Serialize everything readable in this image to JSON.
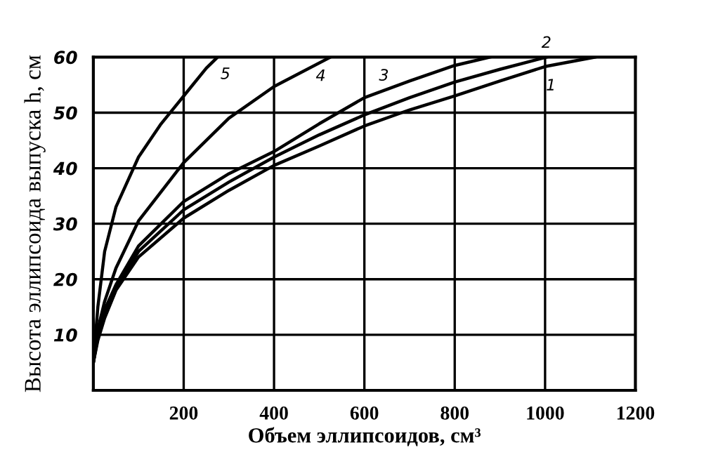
{
  "chart_data": {
    "type": "line",
    "xlabel": "Объем эллипсоидов, см³",
    "ylabel": "Высота эллипсоида выпуска h, см",
    "xlim": [
      0,
      1200
    ],
    "ylim": [
      0,
      60
    ],
    "xticks": [
      {
        "value": 0,
        "label": null
      },
      200,
      400,
      600,
      800,
      1000,
      1200
    ],
    "yticks": [
      {
        "value": 0,
        "label": null
      },
      10,
      20,
      30,
      40,
      50,
      60
    ],
    "grid": true,
    "legend": false,
    "marker": "none",
    "line_style": "solid",
    "series": [
      {
        "name": "1",
        "color": "#000000",
        "x": [
          0,
          10,
          25,
          50,
          100,
          200,
          300,
          400,
          500,
          600,
          700,
          800,
          900,
          1000,
          1110
        ],
        "values": [
          5,
          9,
          13,
          18,
          24,
          31,
          36,
          40.5,
          44,
          47.6,
          50.5,
          53,
          55.7,
          58.3,
          60
        ]
      },
      {
        "name": "2",
        "color": "#000000",
        "x": [
          0,
          10,
          25,
          50,
          100,
          200,
          300,
          400,
          500,
          600,
          700,
          800,
          900,
          1003
        ],
        "values": [
          5,
          9.5,
          14,
          18.5,
          25,
          32.5,
          37.5,
          42,
          46,
          49.6,
          52.7,
          55.5,
          57.8,
          60
        ]
      },
      {
        "name": "3",
        "color": "#000000",
        "x": [
          0,
          10,
          25,
          50,
          100,
          200,
          300,
          400,
          500,
          600,
          700,
          800,
          878
        ],
        "values": [
          5,
          10,
          14.5,
          19,
          26,
          34,
          39,
          43,
          48,
          52.7,
          55.7,
          58.5,
          60
        ]
      },
      {
        "name": "4",
        "color": "#000000",
        "x": [
          0,
          10,
          25,
          50,
          100,
          200,
          300,
          400,
          525
        ],
        "values": [
          5,
          11,
          16,
          22,
          30.5,
          41,
          49,
          54.7,
          60
        ]
      },
      {
        "name": "5",
        "color": "#000000",
        "x": [
          0,
          10,
          25,
          50,
          100,
          150,
          200,
          250,
          275
        ],
        "values": [
          5,
          15,
          25,
          33,
          42,
          48,
          53,
          58,
          60
        ]
      }
    ]
  }
}
